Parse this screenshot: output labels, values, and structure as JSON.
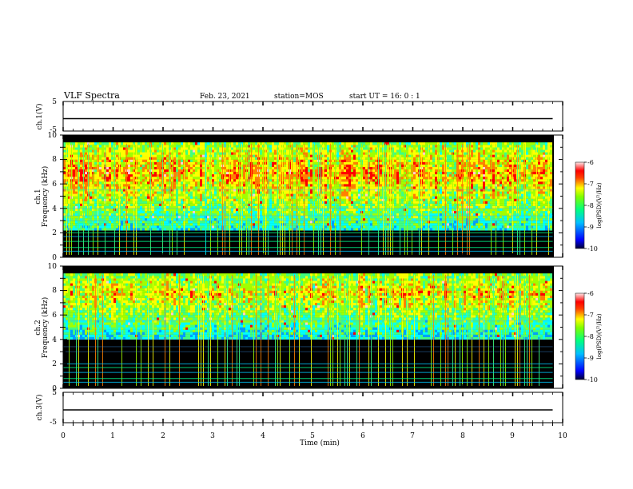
{
  "header": {
    "title": "VLF Spectra",
    "date": "Feb. 23, 2021",
    "station": "station=MOS",
    "start": "start UT =  16: 0 : 1"
  },
  "colors": {
    "colormap": [
      "#000000",
      "#00008c",
      "#0000ff",
      "#00a0ff",
      "#00ffff",
      "#40ff80",
      "#a0ff00",
      "#ffff00",
      "#ff8000",
      "#ff0000",
      "#ffd0d0",
      "#ffffff"
    ]
  },
  "chart_data": [
    {
      "type": "line",
      "name": "ch1-waveform",
      "ylabel": "ch.1(V)",
      "ylim": [
        -5,
        5
      ],
      "yticks": [
        "5",
        "-5"
      ],
      "x": [
        0,
        9.8
      ],
      "y": [
        0,
        0
      ],
      "xlim": [
        0,
        10
      ]
    },
    {
      "type": "heatmap",
      "name": "ch1-spectrogram",
      "ylabel": "ch.1\nFrequency (kHz)",
      "ylim": [
        0,
        10
      ],
      "yticks": [
        "0",
        "2",
        "4",
        "6",
        "8",
        "10"
      ],
      "xlim": [
        0,
        10
      ],
      "x_extent": [
        0,
        9.8
      ],
      "band_khz": [
        2.2,
        9.3
      ],
      "colorbar": {
        "label": "log(PSD)(V²/Hz)",
        "range": [
          -10,
          -6
        ],
        "ticks": [
          "-6",
          "-7",
          "-8",
          "-9",
          "-10"
        ]
      }
    },
    {
      "type": "heatmap",
      "name": "ch2-spectrogram",
      "ylabel": "ch.2\nFrequency (kHz)",
      "ylim": [
        0,
        10
      ],
      "yticks": [
        "0",
        "2",
        "4",
        "6",
        "8",
        "10"
      ],
      "xlim": [
        0,
        10
      ],
      "x_extent": [
        0,
        9.8
      ],
      "band_khz": [
        4.0,
        9.3
      ],
      "colorbar": {
        "label": "log(PSD)(V²/Hz)",
        "range": [
          -10,
          -6
        ],
        "ticks": [
          "-6",
          "-7",
          "-8",
          "-9",
          "-10"
        ]
      }
    },
    {
      "type": "line",
      "name": "ch3-waveform",
      "ylabel": "ch.3(V)",
      "ylim": [
        -5,
        5
      ],
      "yticks": [
        "5",
        "-5"
      ],
      "x": [
        0,
        9.8
      ],
      "y": [
        0,
        0
      ],
      "xlim": [
        0,
        10
      ]
    }
  ],
  "x_axis": {
    "label": "Time (min)",
    "ticks": [
      "0",
      "1",
      "2",
      "3",
      "4",
      "5",
      "6",
      "7",
      "8",
      "9",
      "10"
    ]
  }
}
